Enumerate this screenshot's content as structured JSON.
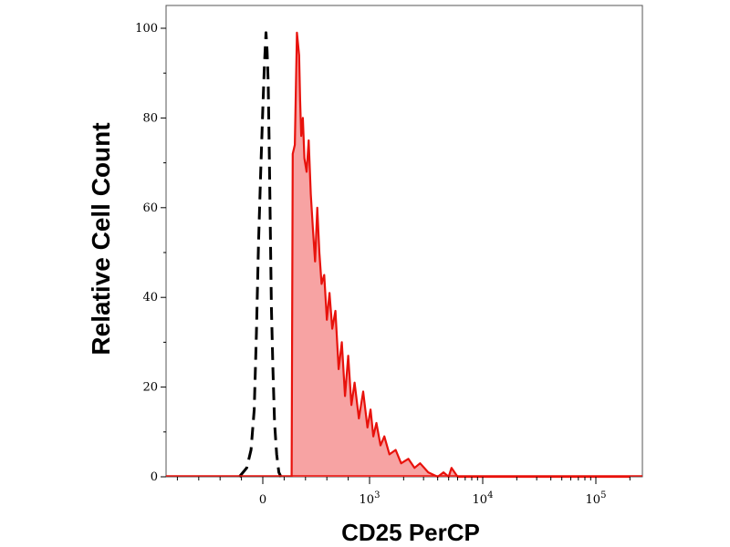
{
  "chart_data": {
    "type": "area",
    "title": "",
    "xlabel": "CD25 PerCP",
    "ylabel": "Relative Cell Count",
    "x_scale": "biexponential",
    "x_ticks": [
      {
        "value": 0,
        "base": "0",
        "exp": ""
      },
      {
        "value": 1000,
        "base": "10",
        "exp": "3"
      },
      {
        "value": 10000,
        "base": "10",
        "exp": "4"
      },
      {
        "value": 100000,
        "base": "10",
        "exp": "5"
      }
    ],
    "y_ticks": [
      "0",
      "20",
      "40",
      "60",
      "80",
      "100"
    ],
    "ylim": [
      0,
      100
    ],
    "grid": false,
    "series": [
      {
        "role": "control",
        "color": "#000000",
        "style": "dashed",
        "x": [
          -220,
          -150,
          -110,
          -80,
          -60,
          -40,
          -20,
          0,
          15,
          30,
          40,
          50,
          60,
          70,
          80,
          95,
          110,
          130,
          150,
          170
        ],
        "y": [
          0,
          2,
          6,
          15,
          32,
          52,
          68,
          82,
          92,
          99,
          95,
          88,
          74,
          56,
          38,
          24,
          12,
          5,
          1,
          0
        ]
      },
      {
        "role": "stained",
        "color": "#e8120c",
        "fill": "#f7a3a3",
        "style": "solid",
        "x": [
          270,
          280,
          300,
          320,
          340,
          350,
          360,
          375,
          390,
          410,
          430,
          450,
          470,
          490,
          510,
          530,
          550,
          575,
          600,
          625,
          650,
          680,
          710,
          740,
          770,
          800,
          830,
          860,
          900,
          940,
          980,
          1020,
          1080,
          1150,
          1250,
          1350,
          1500,
          1700,
          1900,
          2200,
          2500,
          2800,
          3300,
          4000,
          4500,
          5000,
          5300,
          6000,
          8000,
          20000,
          200000
        ],
        "y": [
          0,
          72,
          74,
          99,
          94,
          84,
          76,
          80,
          71,
          68,
          75,
          63,
          55,
          48,
          60,
          50,
          43,
          45,
          35,
          41,
          33,
          37,
          24,
          30,
          18,
          27,
          16,
          21,
          13,
          19,
          11,
          15,
          9,
          12,
          7,
          9,
          5,
          6,
          3,
          4,
          2,
          3,
          1,
          0,
          1,
          0,
          2,
          0,
          0,
          0,
          0
        ]
      }
    ]
  }
}
